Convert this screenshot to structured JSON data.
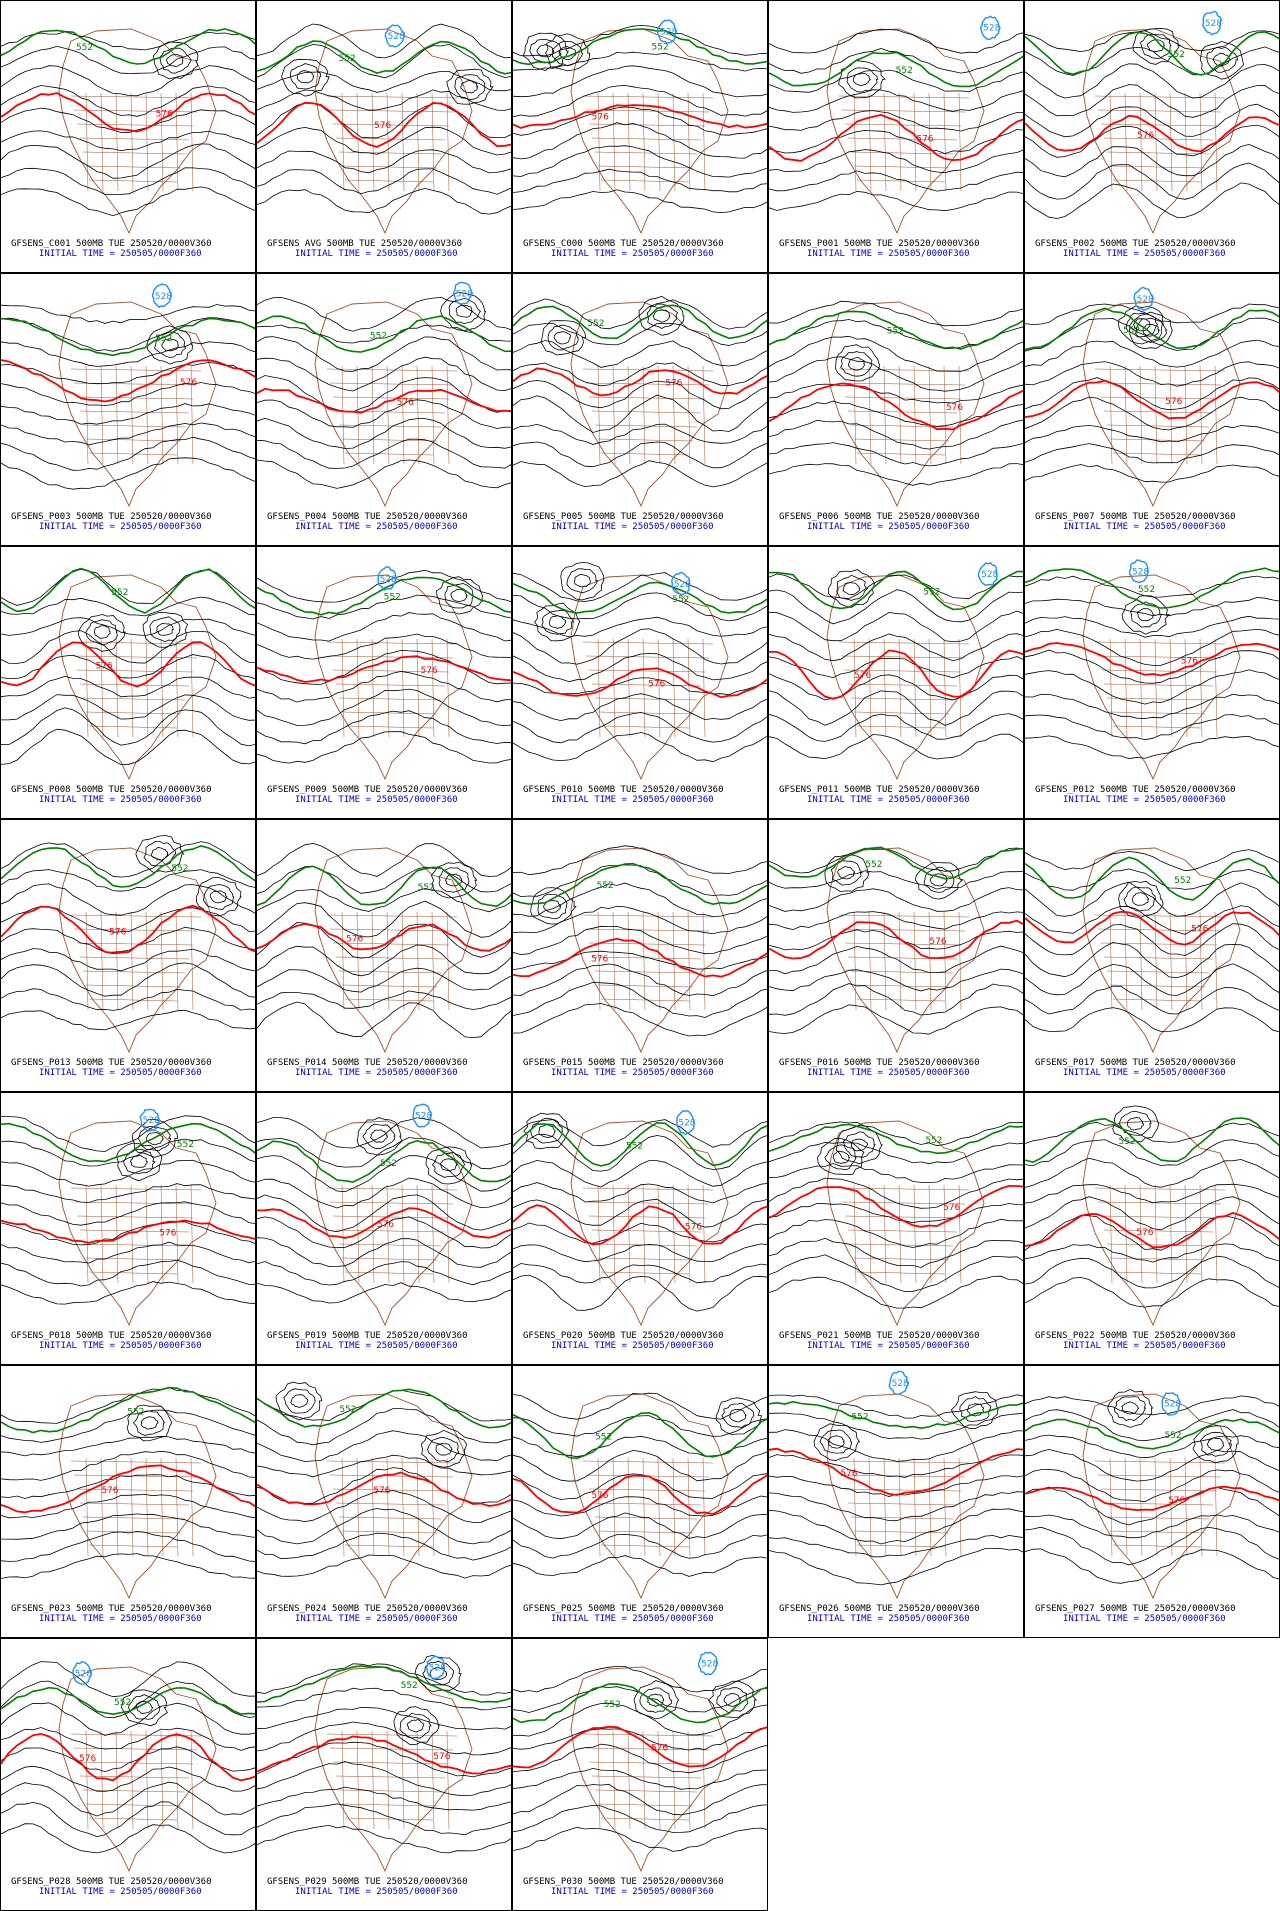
{
  "ensemble": {
    "line1_suffix": " 500MB TUE 250520/0000V360",
    "init_line": "INITIAL TIME = 250505/0000F360",
    "contour_labels": {
      "low": "552",
      "high": "576",
      "deep": "528"
    },
    "colors": {
      "border": "#000000",
      "geography": "#a0522d",
      "contour": "#000000",
      "c552": "#008000",
      "c576": "#ff0000",
      "c528": "#1e90ff",
      "init_text": "#0000cc"
    },
    "members": [
      {
        "name": "GFSENS_C001",
        "shape": 1
      },
      {
        "name": "GFSENS AVG",
        "shape": 2
      },
      {
        "name": "GFSENS_C000",
        "shape": 3
      },
      {
        "name": "GFSENS_P001",
        "shape": 4
      },
      {
        "name": "GFSENS_P002",
        "shape": 5
      },
      {
        "name": "GFSENS_P003",
        "shape": 6
      },
      {
        "name": "GFSENS_P004",
        "shape": 7
      },
      {
        "name": "GFSENS_P005",
        "shape": 8
      },
      {
        "name": "GFSENS_P006",
        "shape": 9
      },
      {
        "name": "GFSENS_P007",
        "shape": 10
      },
      {
        "name": "GFSENS_P008",
        "shape": 11
      },
      {
        "name": "GFSENS_P009",
        "shape": 12
      },
      {
        "name": "GFSENS_P010",
        "shape": 13
      },
      {
        "name": "GFSENS_P011",
        "shape": 14
      },
      {
        "name": "GFSENS_P012",
        "shape": 15
      },
      {
        "name": "GFSENS_P013",
        "shape": 16
      },
      {
        "name": "GFSENS_P014",
        "shape": 17
      },
      {
        "name": "GFSENS_P015",
        "shape": 18
      },
      {
        "name": "GFSENS_P016",
        "shape": 19
      },
      {
        "name": "GFSENS_P017",
        "shape": 20
      },
      {
        "name": "GFSENS_P018",
        "shape": 21
      },
      {
        "name": "GFSENS_P019",
        "shape": 22
      },
      {
        "name": "GFSENS_P020",
        "shape": 23
      },
      {
        "name": "GFSENS_P021",
        "shape": 24
      },
      {
        "name": "GFSENS_P022",
        "shape": 25
      },
      {
        "name": "GFSENS_P023",
        "shape": 26
      },
      {
        "name": "GFSENS_P024",
        "shape": 27
      },
      {
        "name": "GFSENS_P025",
        "shape": 28
      },
      {
        "name": "GFSENS_P026",
        "shape": 29
      },
      {
        "name": "GFSENS_P027",
        "shape": 30
      },
      {
        "name": "GFSENS_P028",
        "shape": 31
      },
      {
        "name": "GFSENS_P029",
        "shape": 32
      },
      {
        "name": "GFSENS_P030",
        "shape": 33
      }
    ]
  }
}
